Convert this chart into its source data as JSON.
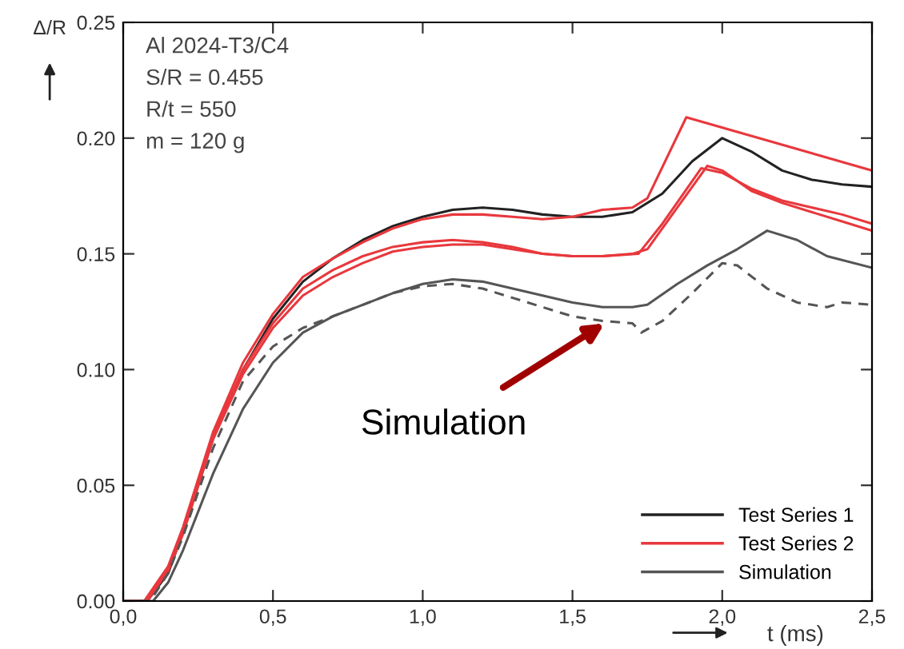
{
  "chart_data": {
    "type": "line",
    "xlabel": "t (ms)",
    "ylabel": "Δ/R",
    "xlim": [
      0,
      2.5
    ],
    "ylim": [
      0,
      0.25
    ],
    "xticks": [
      {
        "value": 0,
        "label": "0,0"
      },
      {
        "value": 0.5,
        "label": "0,5"
      },
      {
        "value": 1.0,
        "label": "1,0"
      },
      {
        "value": 1.5,
        "label": "1,5"
      },
      {
        "value": 2.0,
        "label": "2,0"
      },
      {
        "value": 2.5,
        "label": "2,5"
      }
    ],
    "yticks": [
      {
        "value": 0,
        "label": "0.00"
      },
      {
        "value": 0.05,
        "label": "0.05"
      },
      {
        "value": 0.1,
        "label": "0.10"
      },
      {
        "value": 0.15,
        "label": "0.15"
      },
      {
        "value": 0.2,
        "label": "0.20"
      },
      {
        "value": 0.25,
        "label": "0.25"
      }
    ],
    "grid": false,
    "legend": "bottom right",
    "marker": "none",
    "annotations": [
      "Al 2024-T3/C4",
      "S/R = 0.455",
      "R/t = 550",
      "m = 120 g",
      {
        "text": "Simulation",
        "x": 1.62,
        "y": 0.121
      }
    ],
    "series": [
      {
        "name": "Test Series 1",
        "color": "#222222",
        "line_style": "solid",
        "x": [
          0,
          0.08,
          0.15,
          0.2,
          0.3,
          0.4,
          0.5,
          0.6,
          0.7,
          0.8,
          0.9,
          1.0,
          1.1,
          1.2,
          1.3,
          1.4,
          1.5,
          1.6,
          1.7,
          1.8,
          1.9,
          2.0,
          2.1,
          2.2,
          2.3,
          2.4,
          2.5
        ],
        "values": [
          0,
          0,
          0.012,
          0.03,
          0.07,
          0.1,
          0.122,
          0.138,
          0.148,
          0.156,
          0.162,
          0.166,
          0.169,
          0.17,
          0.169,
          0.167,
          0.166,
          0.166,
          0.168,
          0.176,
          0.19,
          0.2,
          0.194,
          0.186,
          0.182,
          0.18,
          0.179
        ]
      },
      {
        "name": "Test Series 2",
        "color": "#e8383d",
        "line_style": "solid",
        "x": [
          0,
          0.07,
          0.15,
          0.2,
          0.3,
          0.4,
          0.5,
          0.6,
          0.7,
          0.8,
          0.9,
          1.0,
          1.1,
          1.2,
          1.3,
          1.4,
          1.5,
          1.6,
          1.7,
          1.75,
          1.88,
          2.5
        ],
        "values": [
          0,
          0,
          0.015,
          0.032,
          0.073,
          0.103,
          0.124,
          0.14,
          0.148,
          0.155,
          0.161,
          0.165,
          0.167,
          0.167,
          0.166,
          0.165,
          0.166,
          0.169,
          0.17,
          0.174,
          0.209,
          0.186
        ]
      },
      {
        "color": "#e8383d",
        "line_style": "solid",
        "x": [
          0,
          0.08,
          0.15,
          0.2,
          0.3,
          0.4,
          0.5,
          0.6,
          0.7,
          0.8,
          0.9,
          1.0,
          1.1,
          1.2,
          1.3,
          1.4,
          1.5,
          1.6,
          1.7,
          1.75,
          1.85,
          1.95,
          2.0,
          2.1,
          2.2,
          2.3,
          2.4,
          2.5
        ],
        "values": [
          0,
          0,
          0.014,
          0.03,
          0.072,
          0.1,
          0.12,
          0.135,
          0.143,
          0.149,
          0.153,
          0.155,
          0.156,
          0.155,
          0.153,
          0.15,
          0.149,
          0.149,
          0.15,
          0.152,
          0.17,
          0.188,
          0.186,
          0.177,
          0.172,
          0.168,
          0.164,
          0.16
        ]
      },
      {
        "color": "#e8383d",
        "line_style": "solid",
        "x": [
          0,
          0.08,
          0.15,
          0.2,
          0.3,
          0.4,
          0.5,
          0.6,
          0.7,
          0.8,
          0.9,
          1.0,
          1.1,
          1.2,
          1.3,
          1.4,
          1.5,
          1.6,
          1.72,
          1.8,
          1.93,
          2.0,
          2.1,
          2.2,
          2.3,
          2.4,
          2.5
        ],
        "values": [
          0,
          0,
          0.013,
          0.029,
          0.07,
          0.098,
          0.118,
          0.132,
          0.14,
          0.146,
          0.151,
          0.153,
          0.154,
          0.154,
          0.152,
          0.15,
          0.149,
          0.149,
          0.15,
          0.163,
          0.187,
          0.185,
          0.178,
          0.173,
          0.17,
          0.167,
          0.163
        ]
      },
      {
        "name": "Simulation",
        "color": "#555555",
        "line_style": "solid",
        "x": [
          0,
          0.1,
          0.15,
          0.2,
          0.3,
          0.4,
          0.5,
          0.6,
          0.7,
          0.8,
          0.9,
          1.0,
          1.1,
          1.2,
          1.3,
          1.4,
          1.5,
          1.6,
          1.7,
          1.75,
          1.85,
          1.95,
          2.05,
          2.15,
          2.25,
          2.35,
          2.5
        ],
        "values": [
          0,
          0,
          0.008,
          0.022,
          0.055,
          0.083,
          0.103,
          0.116,
          0.123,
          0.128,
          0.133,
          0.137,
          0.139,
          0.138,
          0.135,
          0.132,
          0.129,
          0.127,
          0.127,
          0.128,
          0.137,
          0.145,
          0.152,
          0.16,
          0.156,
          0.149,
          0.144
        ]
      },
      {
        "color": "#555555",
        "line_style": "dashed",
        "x": [
          0,
          0.09,
          0.15,
          0.2,
          0.3,
          0.4,
          0.5,
          0.6,
          0.7,
          0.8,
          0.9,
          1.0,
          1.1,
          1.2,
          1.3,
          1.4,
          1.5,
          1.6,
          1.7,
          1.73,
          1.8,
          1.9,
          2.0,
          2.05,
          2.15,
          2.25,
          2.35,
          2.4,
          2.5
        ],
        "values": [
          0,
          0,
          0.012,
          0.028,
          0.066,
          0.095,
          0.11,
          0.118,
          0.123,
          0.128,
          0.133,
          0.136,
          0.137,
          0.135,
          0.131,
          0.127,
          0.123,
          0.121,
          0.12,
          0.116,
          0.121,
          0.133,
          0.146,
          0.145,
          0.135,
          0.129,
          0.127,
          0.129,
          0.128
        ]
      }
    ]
  }
}
